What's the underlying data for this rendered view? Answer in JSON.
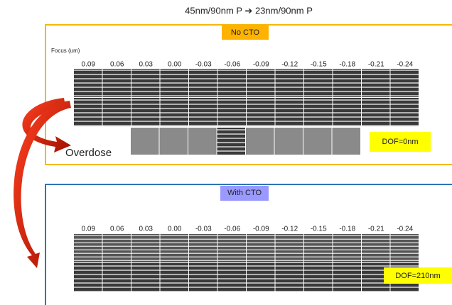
{
  "title": "45nm/90nm P ➔ 23nm/90nm P",
  "top_panel": {
    "label": "No CTO",
    "axis_label": "Focus (um)",
    "focus_labels": [
      "0.09",
      "0.06",
      "0.03",
      "0.00",
      "-0.03",
      "-0.06",
      "-0.09",
      "-0.12",
      "-0.15",
      "-0.18",
      "-0.21",
      "-0.24"
    ],
    "row_label": "Overdose",
    "dof": "DOF=0nm"
  },
  "bottom_panel": {
    "label": "With CTO",
    "focus_labels": [
      "0.09",
      "0.06",
      "0.03",
      "0.00",
      "-0.03",
      "-0.06",
      "-0.09",
      "-0.12",
      "-0.15",
      "-0.18",
      "-0.21",
      "-0.24"
    ],
    "dof": "DOF=210nm"
  }
}
